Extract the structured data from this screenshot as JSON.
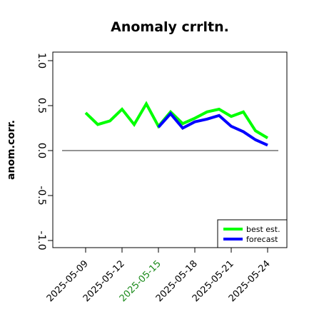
{
  "chart_data": {
    "type": "line",
    "title": "Anomaly crrltn.",
    "ylabel": "anom.corr.",
    "xlabel": "",
    "ylim": [
      -1.0,
      1.0
    ],
    "yticks": [
      -1.0,
      -0.5,
      0.0,
      0.5,
      1.0
    ],
    "ytick_labels": [
      "-1.0",
      "-0.5",
      "0.0",
      "0.5",
      "1.0"
    ],
    "x": [
      "2025-05-09",
      "2025-05-10",
      "2025-05-11",
      "2025-05-12",
      "2025-05-13",
      "2025-05-14",
      "2025-05-15",
      "2025-05-16",
      "2025-05-17",
      "2025-05-18",
      "2025-05-19",
      "2025-05-20",
      "2025-05-21",
      "2025-05-22",
      "2025-05-23",
      "2025-05-24"
    ],
    "xtick_labels": [
      "2025-05-09",
      "2025-05-12",
      "2025-05-15",
      "2025-05-18",
      "2025-05-21",
      "2025-05-24"
    ],
    "xtick_colors": [
      "#000000",
      "#000000",
      "#1a8a1a",
      "#000000",
      "#000000",
      "#000000"
    ],
    "reference_line": 0.0,
    "grid": false,
    "legend_position": "bottom-right",
    "series": [
      {
        "name": "best est.",
        "color": "#00ff00",
        "values": [
          0.42,
          0.29,
          0.33,
          0.46,
          0.29,
          0.52,
          0.27,
          0.43,
          0.3,
          0.36,
          0.43,
          0.46,
          0.38,
          0.43,
          0.22,
          0.14
        ]
      },
      {
        "name": "forecast",
        "color": "#0000ff",
        "values": [
          null,
          null,
          null,
          null,
          null,
          null,
          0.26,
          0.41,
          0.25,
          0.32,
          0.35,
          0.39,
          0.27,
          0.21,
          0.12,
          0.06
        ]
      }
    ]
  }
}
